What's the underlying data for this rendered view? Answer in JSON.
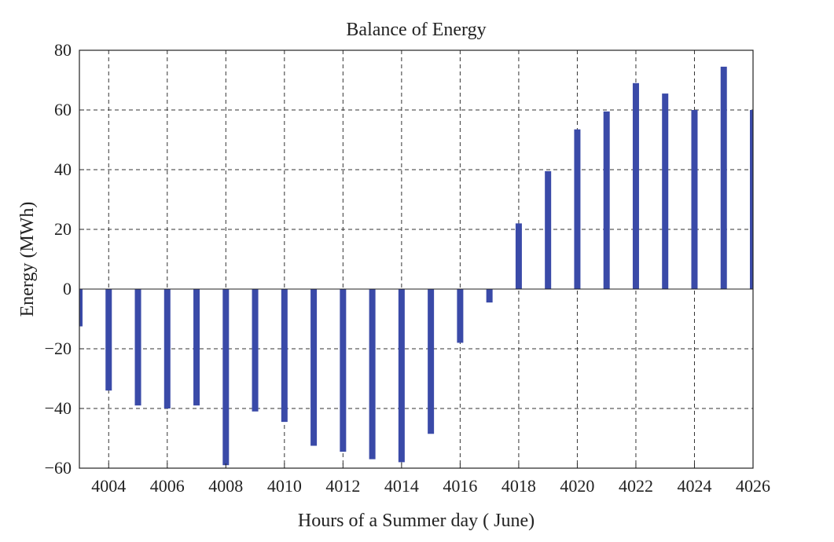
{
  "chart_data": {
    "type": "bar",
    "title": "Balance of Energy",
    "xlabel": "Hours of a Summer day ( June)",
    "ylabel": "Energy (MWh)",
    "xlim": [
      4003,
      4026
    ],
    "ylim": [
      -60,
      80
    ],
    "xticks": [
      4004,
      4006,
      4008,
      4010,
      4012,
      4014,
      4016,
      4018,
      4020,
      4022,
      4024,
      4026
    ],
    "yticks": [
      -60,
      -40,
      -20,
      0,
      20,
      40,
      60,
      80
    ],
    "grid": true,
    "bar_color": "#3a4aa8",
    "x": [
      4003,
      4004,
      4005,
      4006,
      4007,
      4008,
      4009,
      4010,
      4011,
      4012,
      4013,
      4014,
      4015,
      4016,
      4017,
      4018,
      4019,
      4020,
      4021,
      4022,
      4023,
      4024,
      4025,
      4026
    ],
    "values": [
      -12.5,
      -34,
      -39,
      -40,
      -39,
      -59,
      -41,
      -44.5,
      -52.5,
      -54.5,
      -57,
      -58,
      -48.5,
      -18,
      -4.5,
      22,
      39.5,
      53.5,
      59.5,
      69,
      65.5,
      60,
      74.5,
      60
    ]
  }
}
